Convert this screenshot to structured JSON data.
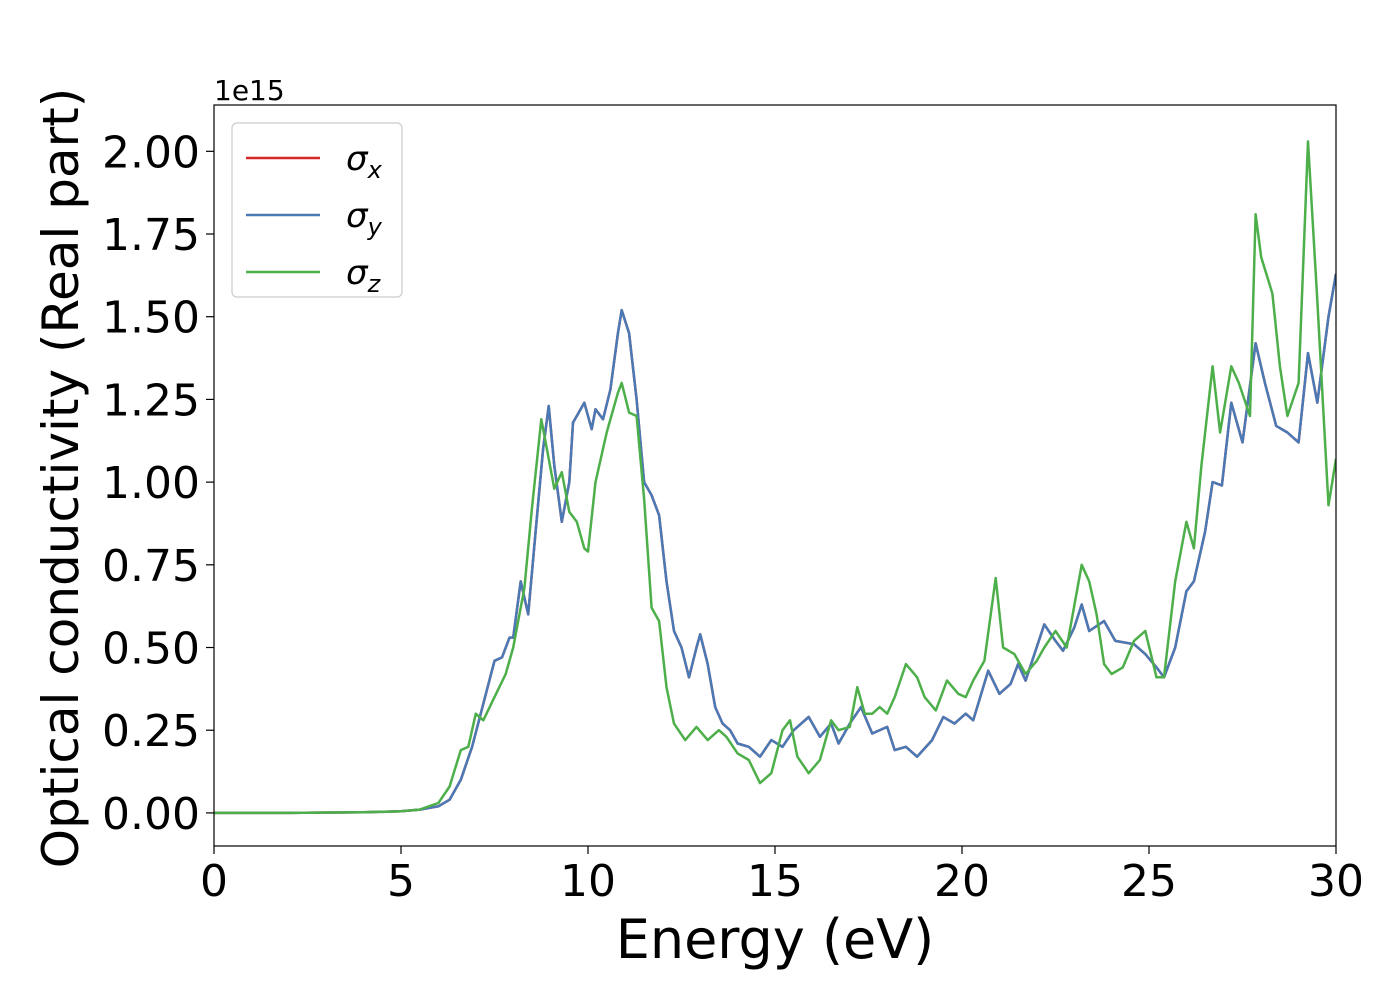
{
  "chart_data": {
    "type": "line",
    "xlabel": "Energy (eV)",
    "ylabel": "Optical conductivity (Real part)",
    "offset_label": "1e15",
    "xlim": [
      0,
      30
    ],
    "ylim": [
      -0.1,
      2.14
    ],
    "xticks": [
      0,
      5,
      10,
      15,
      20,
      25,
      30
    ],
    "yticks": [
      {
        "value": 0,
        "label": "0.00"
      },
      {
        "value": 0.25,
        "label": "0.25"
      },
      {
        "value": 0.5,
        "label": "0.50"
      },
      {
        "value": 0.75,
        "label": "0.75"
      },
      {
        "value": 1.0,
        "label": "1.00"
      },
      {
        "value": 1.25,
        "label": "1.25"
      },
      {
        "value": 1.5,
        "label": "1.50"
      },
      {
        "value": 1.75,
        "label": "1.75"
      },
      {
        "value": 2.0,
        "label": "2.00"
      }
    ],
    "legend": "upper left",
    "series": [
      {
        "name": "σx",
        "color": "#d62728",
        "x": [
          0,
          2,
          4,
          5,
          5.5,
          6,
          6.3,
          6.6,
          6.9,
          7.2,
          7.5,
          7.7,
          7.9,
          8.0,
          8.2,
          8.4,
          8.6,
          8.8,
          8.95,
          9.1,
          9.3,
          9.5,
          9.6,
          9.9,
          10.1,
          10.2,
          10.4,
          10.6,
          10.8,
          10.9,
          11.1,
          11.3,
          11.5,
          11.7,
          11.9,
          12.1,
          12.3,
          12.5,
          12.7,
          12.9,
          13.0,
          13.2,
          13.4,
          13.6,
          13.8,
          14.0,
          14.3,
          14.6,
          14.9,
          15.2,
          15.5,
          15.9,
          16.2,
          16.5,
          16.7,
          17.0,
          17.3,
          17.6,
          18.0,
          18.2,
          18.5,
          18.8,
          19.2,
          19.5,
          19.8,
          20.1,
          20.3,
          20.7,
          21.0,
          21.3,
          21.5,
          21.7,
          22.2,
          22.5,
          22.7,
          23.0,
          23.2,
          23.4,
          23.8,
          24.1,
          24.6,
          24.9,
          25.2,
          25.4,
          25.7,
          26.0,
          26.2,
          26.5,
          26.7,
          26.95,
          27.2,
          27.5,
          27.85,
          28.1,
          28.4,
          28.7,
          29.0,
          29.25,
          29.5,
          29.8,
          30.0
        ],
        "values": [
          0,
          0,
          0.002,
          0.005,
          0.01,
          0.02,
          0.04,
          0.1,
          0.2,
          0.33,
          0.46,
          0.47,
          0.53,
          0.53,
          0.7,
          0.6,
          0.85,
          1.1,
          1.23,
          1.05,
          0.88,
          1.0,
          1.18,
          1.24,
          1.16,
          1.22,
          1.19,
          1.28,
          1.45,
          1.52,
          1.45,
          1.25,
          1.0,
          0.96,
          0.9,
          0.7,
          0.55,
          0.5,
          0.41,
          0.5,
          0.54,
          0.45,
          0.32,
          0.27,
          0.25,
          0.21,
          0.2,
          0.17,
          0.22,
          0.2,
          0.25,
          0.29,
          0.23,
          0.27,
          0.21,
          0.27,
          0.32,
          0.24,
          0.26,
          0.19,
          0.2,
          0.17,
          0.22,
          0.29,
          0.27,
          0.3,
          0.28,
          0.43,
          0.36,
          0.39,
          0.45,
          0.4,
          0.57,
          0.52,
          0.49,
          0.56,
          0.63,
          0.55,
          0.58,
          0.52,
          0.51,
          0.48,
          0.44,
          0.41,
          0.5,
          0.67,
          0.7,
          0.85,
          1.0,
          0.99,
          1.24,
          1.12,
          1.42,
          1.3,
          1.17,
          1.15,
          1.12,
          1.39,
          1.24,
          1.5,
          1.63
        ]
      },
      {
        "name": "σy",
        "color": "#4a7ab5",
        "x": [
          0,
          2,
          4,
          5,
          5.5,
          6,
          6.3,
          6.6,
          6.9,
          7.2,
          7.5,
          7.7,
          7.9,
          8.0,
          8.2,
          8.4,
          8.6,
          8.8,
          8.95,
          9.1,
          9.3,
          9.5,
          9.6,
          9.9,
          10.1,
          10.2,
          10.4,
          10.6,
          10.8,
          10.9,
          11.1,
          11.3,
          11.5,
          11.7,
          11.9,
          12.1,
          12.3,
          12.5,
          12.7,
          12.9,
          13.0,
          13.2,
          13.4,
          13.6,
          13.8,
          14.0,
          14.3,
          14.6,
          14.9,
          15.2,
          15.5,
          15.9,
          16.2,
          16.5,
          16.7,
          17.0,
          17.3,
          17.6,
          18.0,
          18.2,
          18.5,
          18.8,
          19.2,
          19.5,
          19.8,
          20.1,
          20.3,
          20.7,
          21.0,
          21.3,
          21.5,
          21.7,
          22.2,
          22.5,
          22.7,
          23.0,
          23.2,
          23.4,
          23.8,
          24.1,
          24.6,
          24.9,
          25.2,
          25.4,
          25.7,
          26.0,
          26.2,
          26.5,
          26.7,
          26.95,
          27.2,
          27.5,
          27.85,
          28.1,
          28.4,
          28.7,
          29.0,
          29.25,
          29.5,
          29.8,
          30.0
        ],
        "values": [
          0,
          0,
          0.002,
          0.005,
          0.01,
          0.02,
          0.04,
          0.1,
          0.2,
          0.33,
          0.46,
          0.47,
          0.53,
          0.53,
          0.7,
          0.6,
          0.85,
          1.1,
          1.23,
          1.05,
          0.88,
          1.0,
          1.18,
          1.24,
          1.16,
          1.22,
          1.19,
          1.28,
          1.45,
          1.52,
          1.45,
          1.25,
          1.0,
          0.96,
          0.9,
          0.7,
          0.55,
          0.5,
          0.41,
          0.5,
          0.54,
          0.45,
          0.32,
          0.27,
          0.25,
          0.21,
          0.2,
          0.17,
          0.22,
          0.2,
          0.25,
          0.29,
          0.23,
          0.27,
          0.21,
          0.27,
          0.32,
          0.24,
          0.26,
          0.19,
          0.2,
          0.17,
          0.22,
          0.29,
          0.27,
          0.3,
          0.28,
          0.43,
          0.36,
          0.39,
          0.45,
          0.4,
          0.57,
          0.52,
          0.49,
          0.56,
          0.63,
          0.55,
          0.58,
          0.52,
          0.51,
          0.48,
          0.44,
          0.41,
          0.5,
          0.67,
          0.7,
          0.85,
          1.0,
          0.99,
          1.24,
          1.12,
          1.42,
          1.3,
          1.17,
          1.15,
          1.12,
          1.39,
          1.24,
          1.5,
          1.63
        ]
      },
      {
        "name": "σz",
        "color": "#4daf4a",
        "x": [
          0,
          2,
          4,
          5,
          5.5,
          6,
          6.3,
          6.6,
          6.8,
          7.0,
          7.2,
          7.5,
          7.8,
          8.0,
          8.3,
          8.5,
          8.75,
          8.9,
          9.1,
          9.3,
          9.5,
          9.7,
          9.9,
          10.0,
          10.2,
          10.5,
          10.8,
          10.9,
          11.1,
          11.3,
          11.5,
          11.7,
          11.9,
          12.1,
          12.3,
          12.6,
          12.9,
          13.2,
          13.5,
          13.7,
          14.0,
          14.3,
          14.6,
          14.9,
          15.2,
          15.4,
          15.6,
          15.9,
          16.2,
          16.5,
          16.7,
          17.0,
          17.2,
          17.4,
          17.6,
          17.8,
          18.0,
          18.2,
          18.5,
          18.8,
          19.0,
          19.3,
          19.6,
          19.9,
          20.1,
          20.3,
          20.6,
          20.9,
          21.1,
          21.4,
          21.7,
          22.0,
          22.2,
          22.5,
          22.8,
          23.2,
          23.4,
          23.6,
          23.8,
          24.0,
          24.3,
          24.6,
          24.9,
          25.2,
          25.4,
          25.7,
          26.0,
          26.2,
          26.4,
          26.7,
          26.9,
          27.2,
          27.4,
          27.7,
          27.85,
          28.0,
          28.3,
          28.5,
          28.7,
          29.0,
          29.25,
          29.5,
          29.8,
          30.0
        ],
        "values": [
          0,
          0,
          0.002,
          0.005,
          0.01,
          0.03,
          0.08,
          0.19,
          0.2,
          0.3,
          0.28,
          0.35,
          0.42,
          0.5,
          0.68,
          0.92,
          1.19,
          1.1,
          0.98,
          1.03,
          0.91,
          0.88,
          0.8,
          0.79,
          1.0,
          1.15,
          1.27,
          1.3,
          1.21,
          1.2,
          0.95,
          0.62,
          0.58,
          0.38,
          0.27,
          0.22,
          0.26,
          0.22,
          0.25,
          0.23,
          0.18,
          0.16,
          0.09,
          0.12,
          0.25,
          0.28,
          0.17,
          0.12,
          0.16,
          0.28,
          0.25,
          0.26,
          0.38,
          0.3,
          0.3,
          0.32,
          0.3,
          0.35,
          0.45,
          0.41,
          0.35,
          0.31,
          0.4,
          0.36,
          0.35,
          0.4,
          0.46,
          0.71,
          0.5,
          0.48,
          0.42,
          0.46,
          0.5,
          0.55,
          0.5,
          0.75,
          0.7,
          0.6,
          0.45,
          0.42,
          0.44,
          0.52,
          0.55,
          0.41,
          0.41,
          0.7,
          0.88,
          0.8,
          1.05,
          1.35,
          1.15,
          1.35,
          1.3,
          1.2,
          1.81,
          1.68,
          1.57,
          1.35,
          1.2,
          1.3,
          2.03,
          1.55,
          0.93,
          1.07
        ]
      }
    ]
  }
}
